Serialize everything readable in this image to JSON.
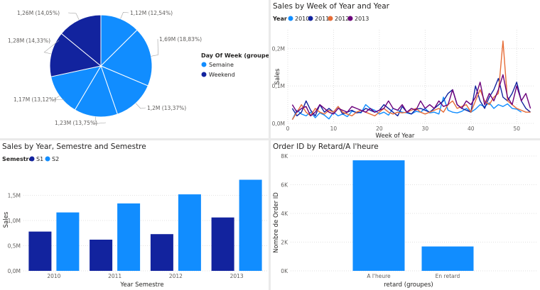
{
  "colors": {
    "dark_blue": "#12239e",
    "light_blue": "#118dff",
    "orange": "#e66c37",
    "purple": "#6b007b",
    "grid": "#d9d9d9",
    "slice_border": "#ffffff"
  },
  "pie": {
    "legend_title": "Day Of Week (groupes)",
    "legend": [
      {
        "name": "Semaine",
        "color": "#118dff"
      },
      {
        "name": "Weekend",
        "color": "#12239e"
      }
    ],
    "chart_data": {
      "type": "pie",
      "slices": [
        {
          "label": "1,12M (12,54%)",
          "value": 12.54,
          "group": "Semaine"
        },
        {
          "label": "1,69M (18,83%)",
          "value": 18.83,
          "group": "Semaine"
        },
        {
          "label": "1,2M (13,37%)",
          "value": 13.37,
          "group": "Semaine"
        },
        {
          "label": "1,23M (13,75%)",
          "value": 13.75,
          "group": "Semaine"
        },
        {
          "label": "1,17M (13,12%)",
          "value": 13.12,
          "group": "Semaine"
        },
        {
          "label": "1,28M (14,33%)",
          "value": 14.33,
          "group": "Weekend"
        },
        {
          "label": "1,26M (14,05%)",
          "value": 14.05,
          "group": "Weekend"
        }
      ]
    }
  },
  "line": {
    "title": "Sales by Week of Year and Year",
    "legend_title": "Year",
    "chart_data": {
      "type": "line",
      "xlabel": "Week of Year",
      "ylabel": "Sales",
      "xlim": [
        0,
        54
      ],
      "ylim": [
        0,
        0.25
      ],
      "x_ticks": [
        0,
        10,
        20,
        30,
        40,
        50
      ],
      "y_ticks": [
        {
          "value": 0,
          "label": "0,0M"
        },
        {
          "value": 0.1,
          "label": "0,1M"
        },
        {
          "value": 0.2,
          "label": "0,2M"
        }
      ],
      "grid": "dotted",
      "series": [
        {
          "name": "2010",
          "color": "#118dff",
          "x_start": 1,
          "values": [
            0.01,
            0.035,
            0.025,
            0.02,
            0.03,
            0.015,
            0.028,
            0.022,
            0.012,
            0.03,
            0.02,
            0.025,
            0.018,
            0.032,
            0.03,
            0.028,
            0.05,
            0.04,
            0.035,
            0.025,
            0.03,
            0.022,
            0.04,
            0.035,
            0.03,
            0.028,
            0.025,
            0.032,
            0.03,
            0.04,
            0.028,
            0.03,
            0.025,
            0.07,
            0.035,
            0.03,
            0.028,
            0.032,
            0.04,
            0.03,
            0.038,
            0.05,
            0.045,
            0.055,
            0.04,
            0.05,
            0.045,
            0.052,
            0.04,
            0.038,
            0.03
          ]
        },
        {
          "name": "2011",
          "color": "#12239e",
          "x_start": 1,
          "values": [
            0.04,
            0.02,
            0.03,
            0.06,
            0.035,
            0.02,
            0.05,
            0.03,
            0.04,
            0.03,
            0.045,
            0.025,
            0.03,
            0.035,
            0.028,
            0.03,
            0.04,
            0.035,
            0.03,
            0.035,
            0.05,
            0.04,
            0.03,
            0.02,
            0.045,
            0.03,
            0.025,
            0.038,
            0.04,
            0.035,
            0.03,
            0.04,
            0.05,
            0.06,
            0.08,
            0.09,
            0.05,
            0.04,
            0.035,
            0.03,
            0.1,
            0.06,
            0.04,
            0.07,
            0.09,
            0.12,
            0.07,
            0.06,
            0.08,
            0.11,
            0.06,
            0.04,
            0.03
          ]
        },
        {
          "name": "2012",
          "color": "#e66c37",
          "x_start": 1,
          "values": [
            0.01,
            0.03,
            0.05,
            0.03,
            0.02,
            0.04,
            0.03,
            0.025,
            0.035,
            0.03,
            0.045,
            0.03,
            0.025,
            0.02,
            0.03,
            0.035,
            0.03,
            0.025,
            0.02,
            0.03,
            0.04,
            0.03,
            0.025,
            0.03,
            0.028,
            0.03,
            0.035,
            0.04,
            0.03,
            0.025,
            0.03,
            0.035,
            0.04,
            0.03,
            0.05,
            0.06,
            0.04,
            0.045,
            0.05,
            0.03,
            0.06,
            0.09,
            0.06,
            0.05,
            0.07,
            0.08,
            0.22,
            0.06,
            0.05,
            0.04,
            0.035,
            0.03,
            0.03
          ]
        },
        {
          "name": "2013",
          "color": "#6b007b",
          "x_start": 1,
          "values": [
            0.05,
            0.03,
            0.04,
            0.045,
            0.02,
            0.03,
            0.05,
            0.04,
            0.03,
            0.025,
            0.04,
            0.035,
            0.03,
            0.045,
            0.04,
            0.035,
            0.03,
            0.04,
            0.03,
            0.035,
            0.04,
            0.06,
            0.04,
            0.035,
            0.05,
            0.03,
            0.04,
            0.035,
            0.06,
            0.04,
            0.05,
            0.04,
            0.06,
            0.045,
            0.05,
            0.09,
            0.05,
            0.04,
            0.06,
            0.05,
            0.07,
            0.11,
            0.05,
            0.08,
            0.06,
            0.09,
            0.13,
            0.07,
            0.05,
            0.1,
            0.06,
            0.08,
            0.04
          ]
        }
      ]
    }
  },
  "bar": {
    "title": "Sales by Year, Semestre and Semestre",
    "legend_title": "Semestre",
    "chart_data": {
      "type": "bar",
      "categories": [
        "2010",
        "2011",
        "2012",
        "2013"
      ],
      "xlabel": "Year Semestre",
      "ylabel": "Sales",
      "ylim": [
        0,
        2.0
      ],
      "y_ticks": [
        {
          "value": 0,
          "label": "0,0M"
        },
        {
          "value": 0.5,
          "label": "0,5M"
        },
        {
          "value": 1.0,
          "label": "1,0M"
        },
        {
          "value": 1.5,
          "label": "1,5M"
        }
      ],
      "grid": "dotted",
      "series": [
        {
          "name": "S1",
          "color": "#12239e",
          "values": [
            0.78,
            0.62,
            0.73,
            1.06
          ]
        },
        {
          "name": "S2",
          "color": "#118dff",
          "values": [
            1.16,
            1.34,
            1.52,
            1.81
          ]
        }
      ]
    }
  },
  "order": {
    "title": "Order ID by Retard/A l'heure",
    "chart_data": {
      "type": "bar",
      "categories": [
        "A l'heure",
        "En retard"
      ],
      "values": [
        7700,
        1700
      ],
      "color": "#118dff",
      "xlabel": "retard (groupes)",
      "ylabel": "Nombre de Order ID",
      "ylim": [
        0,
        8000
      ],
      "y_ticks": [
        {
          "value": 0,
          "label": "0K"
        },
        {
          "value": 2000,
          "label": "2K"
        },
        {
          "value": 4000,
          "label": "4K"
        },
        {
          "value": 6000,
          "label": "6K"
        },
        {
          "value": 8000,
          "label": "8K"
        }
      ],
      "grid": "dotted"
    }
  }
}
